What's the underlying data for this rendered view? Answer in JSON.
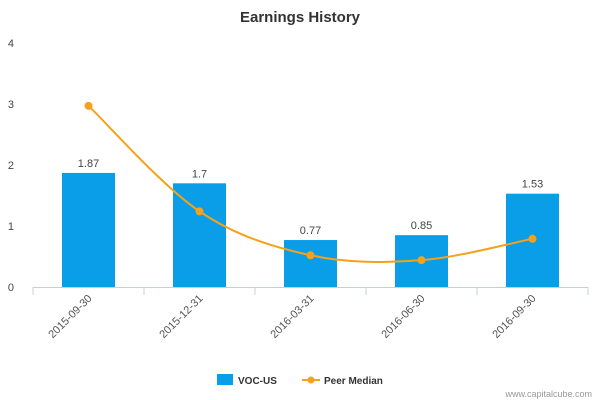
{
  "chart_data": {
    "type": "bar",
    "title": "Earnings History",
    "xlabel": "",
    "ylabel": "",
    "categories": [
      "2015-09-30",
      "2015-12-31",
      "2016-03-31",
      "2016-06-30",
      "2016-09-30"
    ],
    "ylim": [
      0,
      4
    ],
    "yticks": [
      "0",
      "1",
      "2",
      "3",
      "4"
    ],
    "grid": false,
    "legend": "bottom-center",
    "series": [
      {
        "name": "VOC-US",
        "type": "bar",
        "color": "#0A9EE8",
        "values": [
          1.87,
          1.7,
          0.77,
          0.85,
          1.53
        ],
        "labels": [
          "1.87",
          "1.7",
          "0.77",
          "0.85",
          "1.53"
        ]
      },
      {
        "name": "Peer Median",
        "type": "line",
        "color": "#F5A11C",
        "values": [
          2.97,
          1.24,
          0.52,
          0.44,
          0.79
        ]
      }
    ]
  },
  "credit": "www.capitalcube.com"
}
